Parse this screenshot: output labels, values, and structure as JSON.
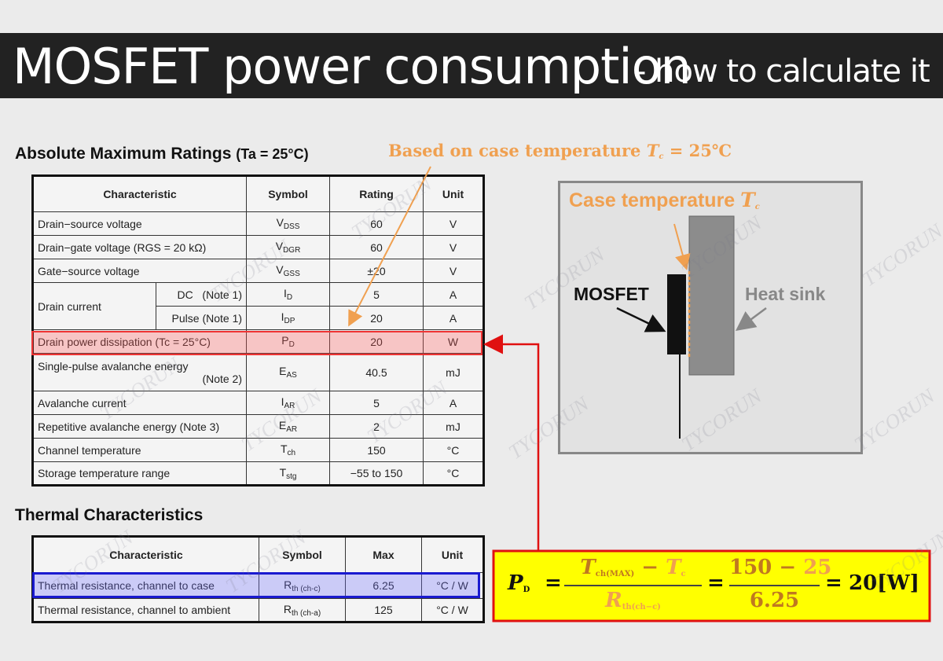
{
  "header": {
    "title": "MOSFET power consumption",
    "subtitle": "- how to calculate it"
  },
  "watermark": "TYCORUN",
  "ratings": {
    "title": "Absolute Maximum Ratings",
    "condition": "(Ta = 25°C)",
    "columns": [
      "Characteristic",
      "Symbol",
      "Rating",
      "Unit"
    ],
    "rows": [
      {
        "characteristic": "Drain−source voltage",
        "symbol": {
          "base": "V",
          "sub": "DSS"
        },
        "rating": "60",
        "unit": "V"
      },
      {
        "characteristic": "Drain−gate voltage (RGS = 20 kΩ)",
        "symbol": {
          "base": "V",
          "sub": "DGR"
        },
        "rating": "60",
        "unit": "V"
      },
      {
        "characteristic": "Gate−source voltage",
        "symbol": {
          "base": "V",
          "sub": "GSS"
        },
        "rating": "±20",
        "unit": "V"
      },
      {
        "characteristic": "Drain current",
        "condition": "DC   (Note 1)",
        "symbol": {
          "base": "I",
          "sub": "D"
        },
        "rating": "5",
        "unit": "A"
      },
      {
        "condition": "Pulse (Note 1)",
        "symbol": {
          "base": "I",
          "sub": "DP"
        },
        "rating": "20",
        "unit": "A"
      },
      {
        "characteristic": "Drain power dissipation (Tc = 25°C)",
        "symbol": {
          "base": "P",
          "sub": "D"
        },
        "rating": "20",
        "unit": "W"
      },
      {
        "characteristic": "Single-pulse avalanche energy",
        "note": "(Note 2)",
        "symbol": {
          "base": "E",
          "sub": "AS"
        },
        "rating": "40.5",
        "unit": "mJ"
      },
      {
        "characteristic": "Avalanche current",
        "symbol": {
          "base": "I",
          "sub": "AR"
        },
        "rating": "5",
        "unit": "A"
      },
      {
        "characteristic": "Repetitive avalanche energy  (Note 3)",
        "symbol": {
          "base": "E",
          "sub": "AR"
        },
        "rating": "2",
        "unit": "mJ"
      },
      {
        "characteristic": "Channel temperature",
        "symbol": {
          "base": "T",
          "sub": "ch"
        },
        "rating": "150",
        "unit": "°C"
      },
      {
        "characteristic": "Storage temperature range",
        "symbol": {
          "base": "T",
          "sub": "stg"
        },
        "rating": "−55 to 150",
        "unit": "°C"
      }
    ]
  },
  "thermal": {
    "title": "Thermal Characteristics",
    "columns": [
      "Characteristic",
      "Symbol",
      "Max",
      "Unit"
    ],
    "rows": [
      {
        "characteristic": "Thermal resistance, channel to case",
        "symbol": {
          "base": "R",
          "sub": "th (ch-c)"
        },
        "max": "6.25",
        "unit": "°C / W"
      },
      {
        "characteristic": "Thermal resistance, channel to ambient",
        "symbol": {
          "base": "R",
          "sub": "th (ch-a)"
        },
        "max": "125",
        "unit": "°C / W"
      }
    ]
  },
  "annotation": {
    "text": "Based on case temperature",
    "symbol": {
      "base": "T",
      "sub": "c"
    },
    "value": "= 25℃"
  },
  "diagram": {
    "case_label": {
      "text": "Case temperature",
      "symbol": {
        "base": "T",
        "sub": "c"
      }
    },
    "mosfet": "MOSFET",
    "heat_sink": "Heat sink"
  },
  "formula": {
    "pd": {
      "base": "P",
      "sub": "D"
    },
    "equals": "=",
    "minus": "−",
    "tch": {
      "base": "T",
      "sub": "ch(MAX)"
    },
    "tc": {
      "base": "T",
      "sub": "c"
    },
    "rth": {
      "base": "R",
      "sub": "th(ch−c)"
    },
    "tch_value": "150",
    "tc_value": "25",
    "rth_value": "6.25",
    "result": "20[W]"
  }
}
